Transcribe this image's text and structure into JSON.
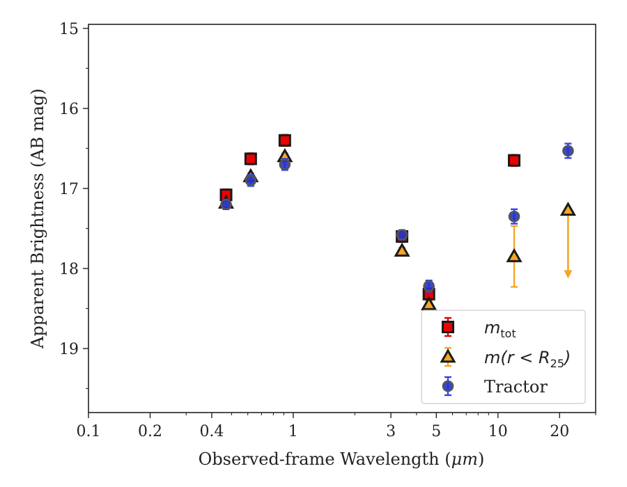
{
  "chart_data": {
    "type": "scatter",
    "title": "",
    "xlabel_prefix": "Observed-frame Wavelength (",
    "xlabel_unit": "μm",
    "xlabel_suffix": ")",
    "ylabel": "Apparent Brightness (AB mag)",
    "xscale": "log",
    "xlim": [
      0.1,
      30
    ],
    "ylim": [
      19.8,
      14.95
    ],
    "y_inverted": true,
    "x_ticks": [
      {
        "v": 0.1,
        "label": "0.1"
      },
      {
        "v": 0.2,
        "label": "0.2"
      },
      {
        "v": 0.4,
        "label": "0.4"
      },
      {
        "v": 1,
        "label": "1"
      },
      {
        "v": 3,
        "label": "3"
      },
      {
        "v": 5,
        "label": "5"
      },
      {
        "v": 10,
        "label": "10"
      },
      {
        "v": 20,
        "label": "20"
      }
    ],
    "x_minor_ticks": [
      0.3,
      0.5,
      0.6,
      0.7,
      0.8,
      0.9,
      2,
      4,
      6,
      7,
      8,
      9,
      30
    ],
    "y_ticks": [
      {
        "v": 15,
        "label": "15"
      },
      {
        "v": 16,
        "label": "16"
      },
      {
        "v": 17,
        "label": "17"
      },
      {
        "v": 18,
        "label": "18"
      },
      {
        "v": 19,
        "label": "19"
      }
    ],
    "y_minor_ticks": [
      15.5,
      16.5,
      17.5,
      18.5,
      19.5
    ],
    "grid": false,
    "legend_position": "lower-right",
    "series": [
      {
        "key": "mtot",
        "legend_main": "m",
        "legend_sub": "tot",
        "marker": "square",
        "face_color": "#ee0000",
        "edge_color": "#1a1a1a",
        "error_color": "#dd0000",
        "points": [
          {
            "x": 0.47,
            "y": 17.08,
            "err": 0.07
          },
          {
            "x": 0.62,
            "y": 16.63,
            "err": 0.07
          },
          {
            "x": 0.91,
            "y": 16.4,
            "err": 0.07
          },
          {
            "x": 3.4,
            "y": 17.6,
            "err": 0.07
          },
          {
            "x": 4.6,
            "y": 18.32,
            "err": 0.07
          },
          {
            "x": 12.0,
            "y": 16.65,
            "err": 0.07
          }
        ]
      },
      {
        "key": "mr25",
        "legend_text": "m(r < R₂₅)",
        "legend_math_main": "m",
        "legend_math_paren_open": "(r < R",
        "legend_math_sub": "25",
        "legend_math_paren_close": ")",
        "marker": "triangle",
        "face_color": "#f5a623",
        "edge_color": "#1a1a1a",
        "error_color": "#f5a623",
        "points": [
          {
            "x": 0.47,
            "y": 17.18,
            "err": 0.04
          },
          {
            "x": 0.62,
            "y": 16.85,
            "err": 0.04
          },
          {
            "x": 0.91,
            "y": 16.6,
            "err": 0.04
          },
          {
            "x": 3.4,
            "y": 17.78,
            "err": 0.04
          },
          {
            "x": 4.6,
            "y": 18.45,
            "err": 0.04
          },
          {
            "x": 12.0,
            "y": 17.85,
            "err_low": 0.38,
            "err_high": 0.38
          },
          {
            "x": 22.0,
            "y": 17.27,
            "upper_limit_to": 18.1
          }
        ]
      },
      {
        "key": "tractor",
        "legend_text": "Tractor",
        "marker": "circle",
        "face_color": "#2233cc",
        "edge_color": "#555555",
        "error_color": "#3344ee",
        "points": [
          {
            "x": 0.47,
            "y": 17.2,
            "err": 0.06
          },
          {
            "x": 0.62,
            "y": 16.9,
            "err": 0.07
          },
          {
            "x": 0.91,
            "y": 16.7,
            "err": 0.07
          },
          {
            "x": 3.4,
            "y": 17.58,
            "err": 0.06
          },
          {
            "x": 4.6,
            "y": 18.22,
            "err": 0.07
          },
          {
            "x": 12.0,
            "y": 17.35,
            "err": 0.09
          },
          {
            "x": 22.0,
            "y": 16.53,
            "err": 0.09
          }
        ]
      }
    ]
  }
}
